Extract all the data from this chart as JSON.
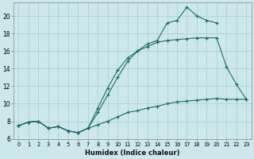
{
  "xlabel": "Humidex (Indice chaleur)",
  "bg_color": "#cce8ea",
  "grid_color": "#aacccc",
  "line_color": "#1e6b6b",
  "xlim": [
    -0.5,
    23.5
  ],
  "ylim": [
    6,
    21.5
  ],
  "xticks": [
    0,
    1,
    2,
    3,
    4,
    5,
    6,
    7,
    8,
    9,
    10,
    11,
    12,
    13,
    14,
    15,
    16,
    17,
    18,
    19,
    20,
    21,
    22,
    23
  ],
  "yticks": [
    6,
    8,
    10,
    12,
    14,
    16,
    18,
    20
  ],
  "line1_x": [
    0,
    1,
    2,
    3,
    4,
    5,
    6,
    7,
    8,
    9,
    10,
    11,
    12,
    13,
    14,
    15,
    16,
    17,
    18,
    19,
    20,
    21,
    22,
    23
  ],
  "line1_y": [
    7.5,
    7.9,
    8.0,
    7.2,
    7.4,
    6.9,
    6.7,
    7.2,
    7.6,
    8.0,
    8.5,
    9.0,
    9.2,
    9.5,
    9.7,
    10.0,
    10.2,
    10.3,
    10.4,
    10.5,
    10.6,
    10.5,
    10.5,
    10.5
  ],
  "line2_x": [
    0,
    1,
    2,
    3,
    4,
    5,
    6,
    7,
    8,
    9,
    10,
    11,
    12,
    13,
    14,
    15,
    16,
    17,
    18,
    19,
    20,
    21,
    22,
    23
  ],
  "line2_y": [
    7.5,
    7.9,
    8.0,
    7.2,
    7.4,
    6.9,
    6.7,
    7.2,
    9.0,
    11.0,
    13.0,
    14.8,
    16.0,
    16.5,
    17.0,
    17.2,
    17.3,
    17.4,
    17.5,
    17.5,
    17.5,
    14.2,
    12.2,
    10.5
  ],
  "line3_x": [
    0,
    1,
    2,
    3,
    4,
    5,
    6,
    7,
    8,
    9,
    10,
    11,
    12,
    13,
    14,
    15,
    16,
    17,
    18,
    19,
    20
  ],
  "line3_y": [
    7.5,
    7.9,
    8.0,
    7.2,
    7.4,
    6.9,
    6.7,
    7.2,
    9.5,
    11.8,
    13.8,
    15.2,
    16.0,
    16.8,
    17.2,
    19.2,
    19.5,
    21.0,
    20.0,
    19.5,
    19.2
  ]
}
